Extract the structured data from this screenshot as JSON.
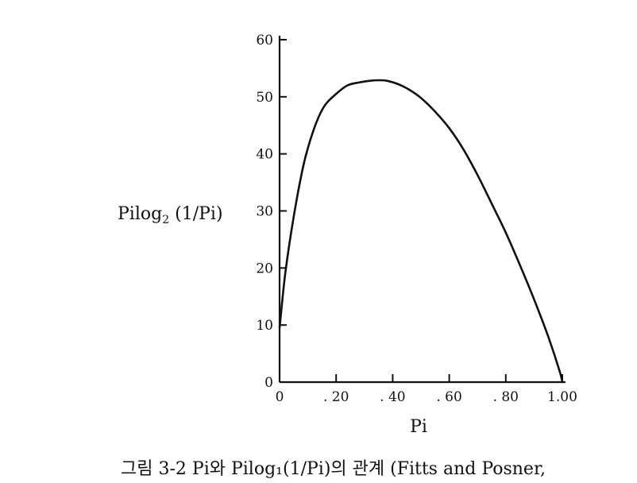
{
  "chart_data": {
    "type": "line",
    "ylabel_main": "Pilog",
    "ylabel_sub": "2",
    "ylabel_rest": " (1/Pi)",
    "xlabel": "Pi",
    "x_ticks": [
      0,
      0.2,
      0.4,
      0.6,
      0.8,
      1.0
    ],
    "x_tick_labels": [
      "0",
      ". 20",
      ". 40",
      ". 60",
      ". 80",
      "1.00"
    ],
    "y_ticks": [
      0,
      10,
      20,
      30,
      40,
      50,
      60
    ],
    "y_tick_labels": [
      "0",
      "10",
      "20",
      "30",
      "40",
      "50",
      "60"
    ],
    "xlim": [
      0,
      1.0
    ],
    "ylim": [
      0,
      60
    ],
    "grid": false,
    "series": [
      {
        "x": [
          0.0,
          0.02,
          0.05,
          0.08,
          0.1,
          0.13,
          0.16,
          0.2,
          0.24,
          0.28,
          0.32,
          0.35,
          0.38,
          0.42,
          0.46,
          0.5,
          0.55,
          0.6,
          0.65,
          0.7,
          0.75,
          0.8,
          0.85,
          0.9,
          0.95,
          0.99,
          1.0
        ],
        "y": [
          9.5,
          19,
          29,
          37,
          41,
          45.5,
          48.5,
          50.5,
          52,
          52.5,
          52.8,
          52.9,
          52.8,
          52.2,
          51.2,
          49.8,
          47.4,
          44.5,
          40.8,
          36.3,
          31.3,
          26.2,
          20.5,
          14.5,
          8,
          2,
          0
        ]
      }
    ]
  },
  "caption": "그림 3-2 Pi와 Pilog₁(1/Pi)의 관계 (Fitts and Posner,"
}
